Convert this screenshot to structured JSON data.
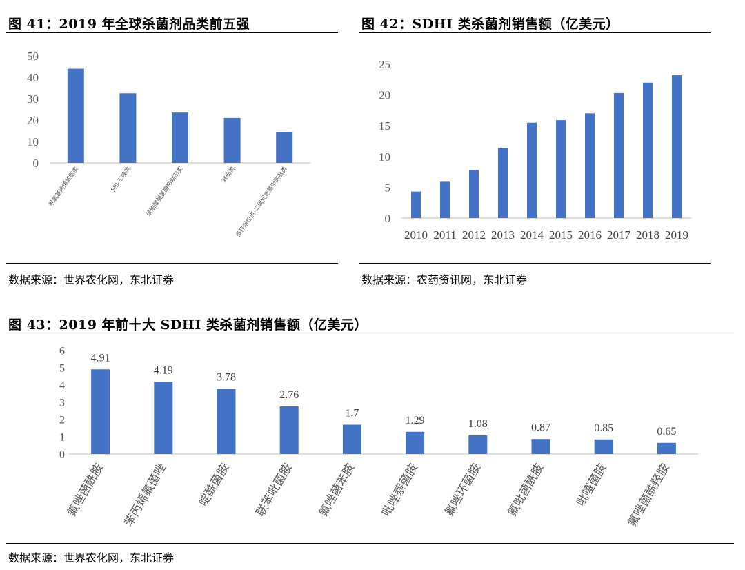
{
  "figures": [
    {
      "title": "图  41：2019 年全球杀菌剂品类前五强",
      "source": "数据来源：世界农化网，东北证券"
    },
    {
      "title": "图  42：SDHI 类杀菌剂销售额（亿美元）",
      "source": "数据来源：农药资讯网，东北证券"
    },
    {
      "title": "图  43：2019 年前十大 SDHI 类杀菌剂销售额（亿美元）",
      "source": "数据来源：世界农化网，东北证券"
    }
  ],
  "colors": {
    "bar": "#4472c4",
    "axis": "#bfbfbf",
    "text": "#595959"
  },
  "chart_data": [
    {
      "type": "bar",
      "title": "",
      "categories": [
        "甲氧基丙烯酸酯类",
        "SBI-三唑类",
        "琥珀酸脱氢酶抑制剂类",
        "其他类",
        "多作用位点-二硫代氨基甲酸盐类"
      ],
      "values": [
        44,
        32.5,
        23.5,
        21,
        14.5
      ],
      "ylim": [
        0,
        50
      ],
      "yticks": [
        0,
        10,
        20,
        30,
        40,
        50
      ],
      "grid": false
    },
    {
      "type": "bar",
      "title": "",
      "categories": [
        "2010",
        "2011",
        "2012",
        "2013",
        "2014",
        "2015",
        "2016",
        "2017",
        "2018",
        "2019"
      ],
      "values": [
        4.3,
        5.9,
        7.8,
        11.4,
        15.5,
        15.9,
        17.0,
        20.3,
        22.0,
        23.2
      ],
      "ylim": [
        0,
        25
      ],
      "yticks": [
        0,
        5,
        10,
        15,
        20,
        25
      ],
      "grid": false
    },
    {
      "type": "bar",
      "title": "",
      "categories": [
        "氟唑菌酰胺",
        "苯丙烯氟菌唑",
        "啶酰菌胺",
        "联苯吡菌胺",
        "氟唑菌苯胺",
        "吡唑萘菌胺",
        "氟唑环菌胺",
        "氟吡菌酰胺",
        "吡噻菌胺",
        "氟唑菌酰羟胺"
      ],
      "values": [
        4.91,
        4.19,
        3.78,
        2.76,
        1.7,
        1.29,
        1.08,
        0.87,
        0.85,
        0.65
      ],
      "data_labels": [
        "4.91",
        "4.19",
        "3.78",
        "2.76",
        "1.7",
        "1.29",
        "1.08",
        "0.87",
        "0.85",
        "0.65"
      ],
      "ylim": [
        0,
        6
      ],
      "yticks": [
        0,
        1,
        2,
        3,
        4,
        5,
        6
      ],
      "grid": false
    }
  ]
}
